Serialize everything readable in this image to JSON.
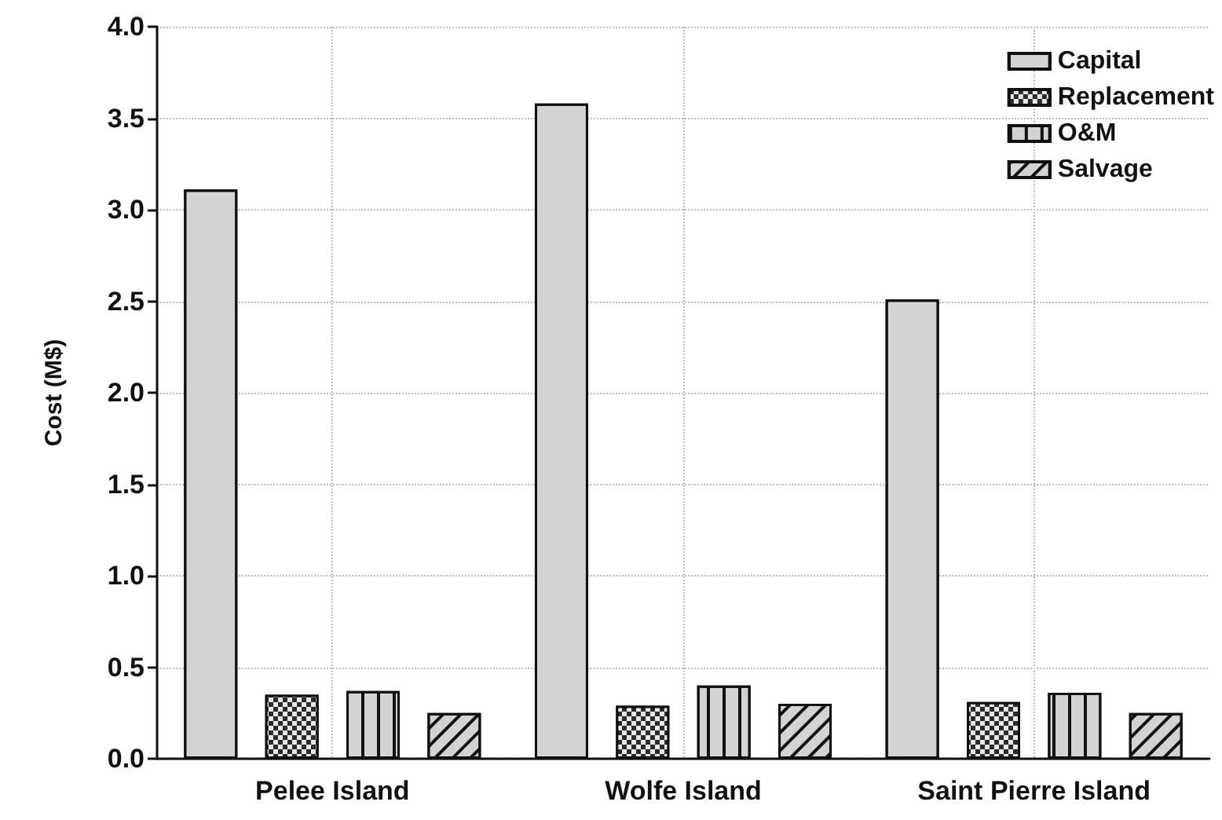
{
  "chart_data": {
    "type": "bar",
    "ylabel": "Cost (M$)",
    "categories": [
      "Pelee Island",
      "Wolfe Island",
      "Saint Pierre Island"
    ],
    "series": [
      {
        "name": "Capital",
        "color": "#d3d3d3",
        "values": [
          3.11,
          3.58,
          2.51
        ]
      },
      {
        "name": "Replacement",
        "color": "#2b2b2b",
        "values": [
          0.35,
          0.29,
          0.31
        ]
      },
      {
        "name": "O&M",
        "color": "#d3d3d3",
        "values": [
          0.37,
          0.4,
          0.36
        ]
      },
      {
        "name": "Salvage",
        "color": "#d3d3d3",
        "values": [
          0.25,
          0.3,
          0.25
        ]
      }
    ],
    "ylim": [
      0,
      4.0
    ],
    "yticks": [
      {
        "value": 0,
        "label": "0.0"
      },
      0.5,
      {
        "value": 1,
        "label": "1.0"
      },
      1.5,
      {
        "value": 2,
        "label": "2.0"
      },
      2.5,
      {
        "value": 3,
        "label": "3.0"
      },
      3.5,
      {
        "value": 4,
        "label": "4.0"
      }
    ],
    "grid": true,
    "legend": "top right"
  }
}
